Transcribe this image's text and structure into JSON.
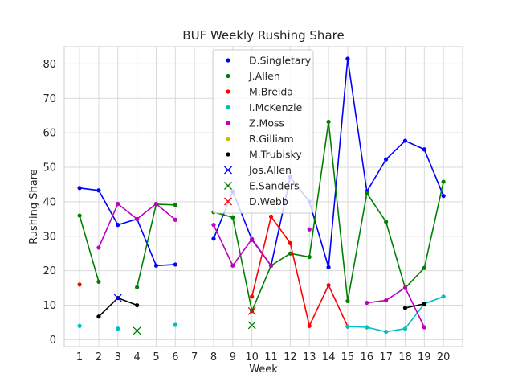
{
  "chart_data": {
    "type": "line",
    "title": "BUF Weekly Rushing Share",
    "xlabel": "Week",
    "ylabel": "Rushing Share",
    "xlim": [
      0.2,
      21.0
    ],
    "ylim": [
      -2,
      85
    ],
    "xticks": [
      1,
      2,
      3,
      4,
      5,
      6,
      7,
      8,
      9,
      10,
      11,
      12,
      13,
      14,
      15,
      16,
      17,
      18,
      19,
      20
    ],
    "yticks": [
      0,
      10,
      20,
      30,
      40,
      50,
      60,
      70,
      80
    ],
    "grid": true,
    "legend_position": "top-center",
    "series": [
      {
        "name": "D.Singletary",
        "color": "#0000ff",
        "marker": "dot",
        "points": [
          [
            1,
            44
          ],
          [
            2,
            43.3
          ],
          [
            3,
            33.3
          ],
          [
            4,
            35
          ],
          [
            5,
            21.5
          ],
          [
            6,
            21.8
          ],
          null,
          [
            8,
            29.3
          ],
          [
            9,
            43
          ],
          [
            10,
            29
          ],
          [
            11,
            21.5
          ],
          [
            12,
            47.2
          ],
          [
            13,
            40
          ],
          [
            14,
            21
          ],
          [
            15,
            81.5
          ],
          [
            16,
            43
          ],
          [
            17,
            52.3
          ],
          [
            18,
            57.7
          ],
          [
            19,
            55.2
          ],
          [
            20,
            41.7
          ]
        ]
      },
      {
        "name": "J.Allen",
        "color": "#008000",
        "marker": "dot",
        "points": [
          [
            1,
            36
          ],
          [
            2,
            16.8
          ],
          null,
          [
            4,
            15.2
          ],
          [
            5,
            39.3
          ],
          [
            6,
            39.1
          ],
          null,
          [
            8,
            37
          ],
          [
            9,
            35.5
          ],
          [
            10,
            8.3
          ],
          [
            11,
            21.5
          ],
          [
            12,
            25
          ],
          [
            13,
            24
          ],
          [
            14,
            63.2
          ],
          [
            15,
            11.2
          ],
          [
            16,
            42.5
          ],
          [
            17,
            34.2
          ],
          [
            18,
            15
          ],
          [
            19,
            20.8
          ],
          [
            20,
            45.8
          ]
        ]
      },
      {
        "name": "M.Breida",
        "color": "#ff0000",
        "marker": "dot",
        "points": [
          [
            1,
            16
          ],
          null,
          [
            10,
            12.5
          ],
          [
            11,
            35.7
          ],
          [
            12,
            28
          ],
          [
            13,
            4
          ],
          [
            14,
            15.8
          ],
          [
            15,
            3.8
          ]
        ]
      },
      {
        "name": "I.McKenzie",
        "color": "#00bfbf",
        "marker": "dot",
        "points": [
          [
            1,
            4
          ],
          null,
          [
            3,
            3.2
          ],
          null,
          [
            6,
            4.3
          ],
          null,
          [
            15,
            3.8
          ],
          [
            16,
            3.6
          ],
          [
            17,
            2.3
          ],
          [
            18,
            3.2
          ],
          [
            19,
            10.4
          ],
          [
            20,
            12.5
          ]
        ]
      },
      {
        "name": "Z.Moss",
        "color": "#bf00bf",
        "marker": "dot",
        "points": [
          [
            2,
            26.7
          ],
          [
            3,
            39.4
          ],
          [
            4,
            35
          ],
          [
            5,
            39.4
          ],
          [
            6,
            34.8
          ],
          null,
          [
            8,
            33.3
          ],
          [
            9,
            21.5
          ],
          [
            10,
            29.2
          ],
          [
            11,
            21.5
          ],
          null,
          [
            13,
            32
          ],
          null,
          [
            16,
            10.7
          ],
          [
            17,
            11.4
          ],
          [
            18,
            15.1
          ],
          [
            19,
            3.6
          ]
        ]
      },
      {
        "name": "R.Gilliam",
        "color": "#bfbf00",
        "marker": "dot",
        "points": []
      },
      {
        "name": "M.Trubisky",
        "color": "#000000",
        "marker": "dot",
        "points": [
          [
            2,
            6.7
          ],
          [
            3,
            12.1
          ],
          [
            4,
            10
          ],
          null,
          [
            18,
            9.2
          ],
          [
            19,
            10.4
          ]
        ]
      },
      {
        "name": "Jos.Allen",
        "color": "#0000ff",
        "marker": "x",
        "points": [
          [
            3,
            12.1
          ]
        ]
      },
      {
        "name": "E.Sanders",
        "color": "#008000",
        "marker": "x",
        "points": [
          [
            4,
            2.6
          ],
          [
            10,
            4.2
          ]
        ]
      },
      {
        "name": "D.Webb",
        "color": "#ff0000",
        "marker": "x",
        "points": [
          [
            10,
            8.3
          ]
        ]
      }
    ]
  }
}
